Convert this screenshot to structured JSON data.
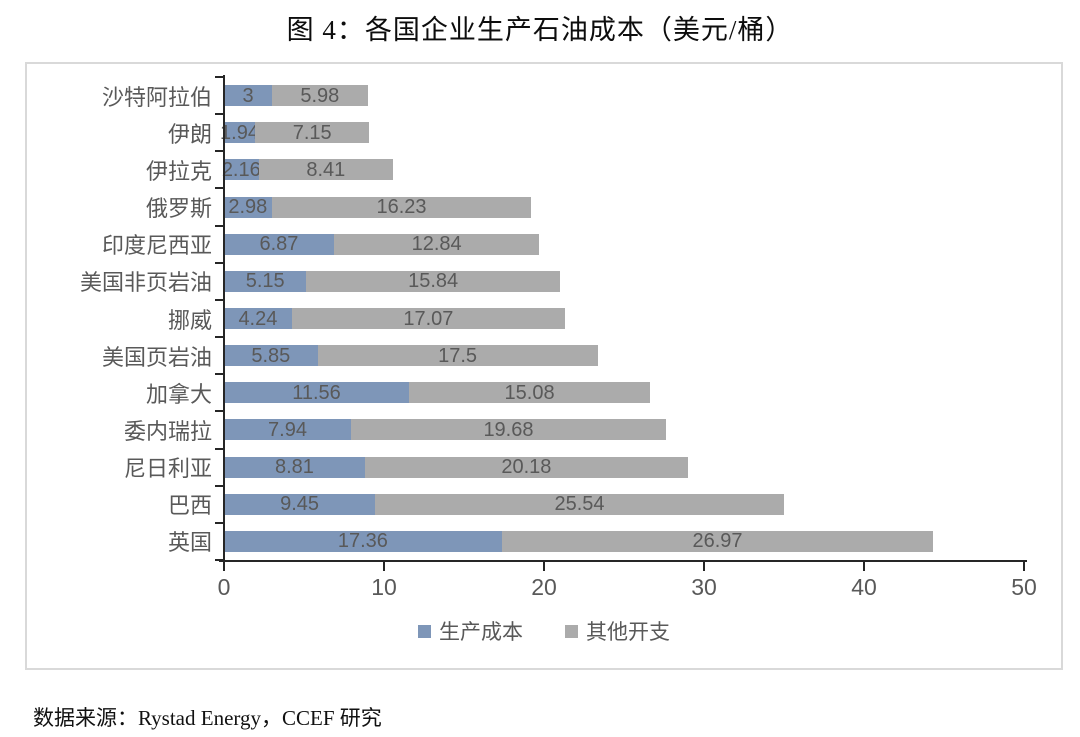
{
  "title": "图 4：各国企业生产石油成本（美元/桶）",
  "source": "数据来源：Rystad Energy，CCEF 研究",
  "colors": {
    "production_cost": "#7E96B8",
    "other_expense": "#ABABAB",
    "label_text": "#595959",
    "axis_line": "#262626",
    "chart_border": "#D9D9D9"
  },
  "chart_data": {
    "type": "bar",
    "orientation": "horizontal",
    "stacked": true,
    "title": "图 4：各国企业生产石油成本（美元/桶）",
    "categories": [
      "沙特阿拉伯",
      "伊朗",
      "伊拉克",
      "俄罗斯",
      "印度尼西亚",
      "美国非页岩油",
      "挪威",
      "美国页岩油",
      "加拿大",
      "委内瑞拉",
      "尼日利亚",
      "巴西",
      "英国"
    ],
    "series": [
      {
        "name": "生产成本",
        "color": "#7E96B8",
        "values": [
          3,
          1.94,
          2.16,
          2.98,
          6.87,
          5.15,
          4.24,
          5.85,
          11.56,
          7.94,
          8.81,
          9.45,
          17.36
        ]
      },
      {
        "name": "其他开支",
        "color": "#ABABAB",
        "values": [
          5.98,
          7.15,
          8.41,
          16.23,
          12.84,
          15.84,
          17.07,
          17.5,
          15.08,
          19.68,
          20.18,
          25.54,
          26.97
        ]
      }
    ],
    "x_ticks": [
      0,
      10,
      20,
      30,
      40,
      50
    ],
    "xlim": [
      0,
      50
    ],
    "grid": false,
    "data_labels": true,
    "legend_position": "bottom"
  }
}
